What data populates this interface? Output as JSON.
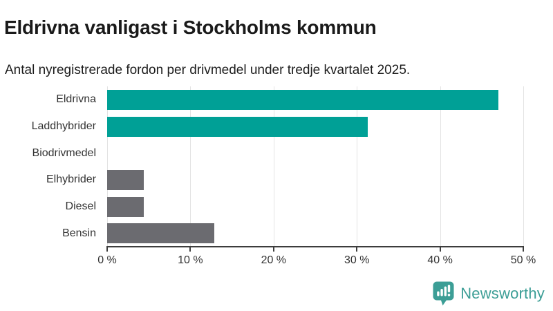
{
  "header": {
    "title": "Eldrivna vanligast i Stockholms kommun",
    "subtitle": "Antal nyregistrerade fordon per drivmedel under tredje kvartalet 2025."
  },
  "chart_data": {
    "type": "bar",
    "orientation": "horizontal",
    "title": "Eldrivna vanligast i Stockholms kommun",
    "subtitle": "Antal nyregistrerade fordon per drivmedel under tredje kvartalet 2025.",
    "categories": [
      "Eldrivna",
      "Laddhybrider",
      "Biodrivmedel",
      "Elhybrider",
      "Diesel",
      "Bensin"
    ],
    "values": [
      47,
      31.3,
      0,
      4.4,
      4.4,
      12.9
    ],
    "unit": "%",
    "xlim": [
      0,
      50
    ],
    "x_ticks": [
      0,
      10,
      20,
      30,
      40,
      50
    ],
    "x_tick_labels": [
      "0 %",
      "10 %",
      "20 %",
      "30 %",
      "40 %",
      "50 %"
    ],
    "bar_colors": [
      "#00a096",
      "#00a096",
      "#6b6b70",
      "#6b6b70",
      "#6b6b70",
      "#6b6b70"
    ],
    "grid": true,
    "legend": "none"
  },
  "footer": {
    "brand": "Newsworthy",
    "logo_icon": "bar-chart-speech-bubble-icon",
    "brand_color": "#3c9e96"
  },
  "colors": {
    "teal": "#00a096",
    "grey": "#6b6b70",
    "axis": "#3d3d3d",
    "grid": "#e3e3e3",
    "label_text": "#333333",
    "title_text": "#1a1a1a"
  }
}
